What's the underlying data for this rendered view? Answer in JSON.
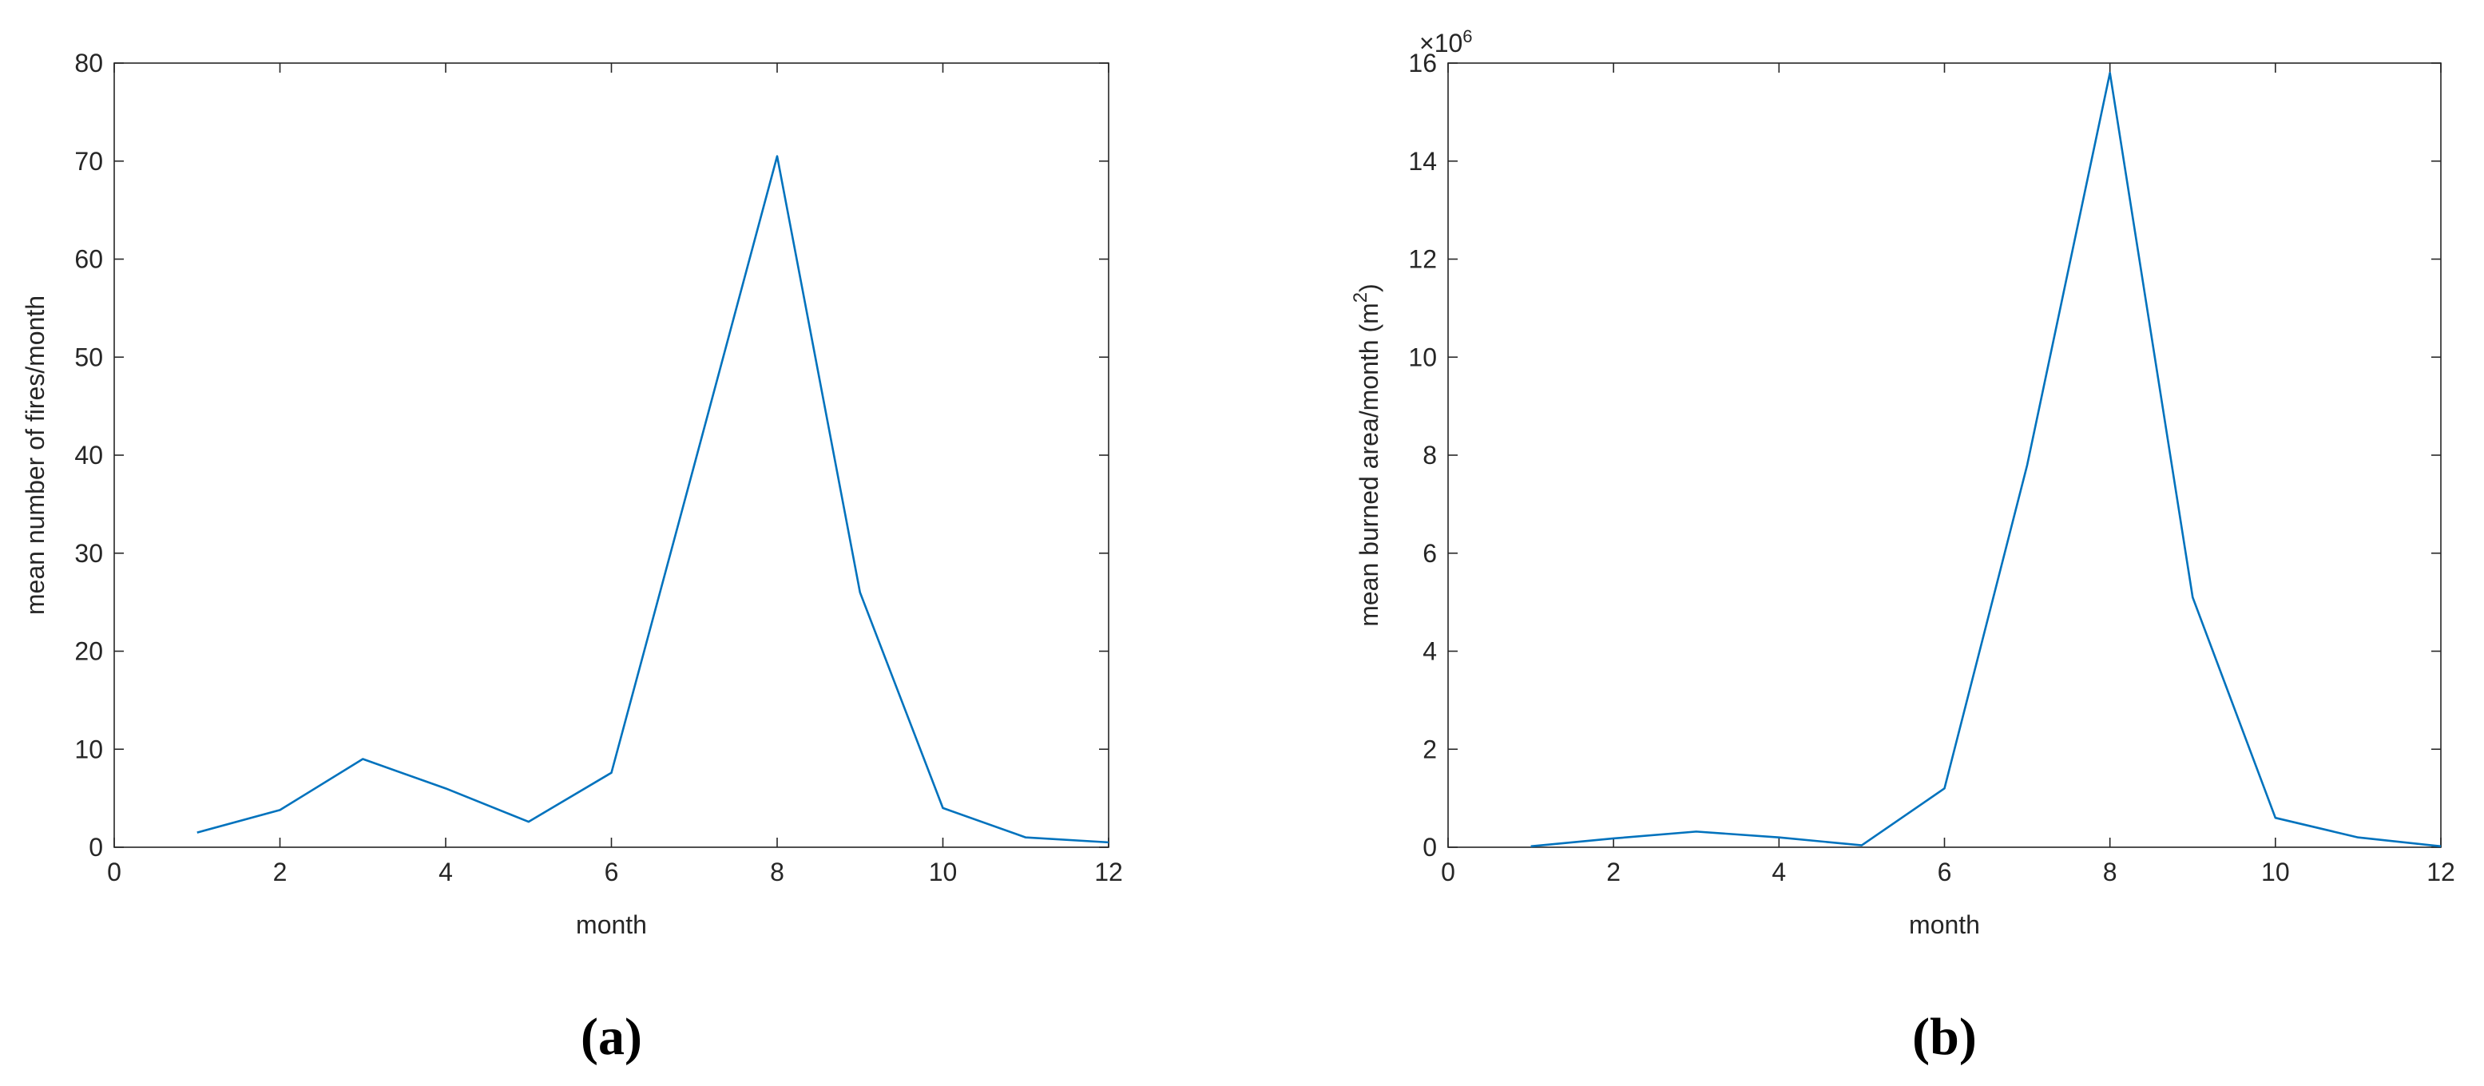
{
  "chart_data": [
    {
      "type": "line",
      "caption": "(a)",
      "xlabel": "month",
      "ylabel": "mean number of fires/month",
      "x": [
        1,
        2,
        3,
        4,
        5,
        6,
        7,
        8,
        9,
        10,
        11,
        12
      ],
      "series": [
        {
          "color": "#0072bd",
          "values": [
            1.5,
            3.8,
            9,
            6,
            2.6,
            7.6,
            39,
            70.5,
            26,
            4,
            1,
            0.5
          ]
        }
      ],
      "xlim": [
        0,
        12
      ],
      "xticks": [
        0,
        2,
        4,
        6,
        8,
        10,
        12
      ],
      "ylim": [
        0,
        80
      ],
      "yticks": [
        0,
        10,
        20,
        30,
        40,
        50,
        60,
        70,
        80
      ]
    },
    {
      "type": "line",
      "caption": "(b)",
      "xlabel": "month",
      "ylabel": {
        "text": "mean burned area/month (m",
        "superscript": "2",
        "suffix": ")"
      },
      "y_multiplier": {
        "base": "×10",
        "exponent": "6"
      },
      "x": [
        1,
        2,
        3,
        4,
        5,
        6,
        7,
        8,
        9,
        10,
        11,
        12
      ],
      "series": [
        {
          "color": "#0072bd",
          "values": [
            0.02,
            0.18,
            0.32,
            0.2,
            0.04,
            1.2,
            7.8,
            15.8,
            5.1,
            0.6,
            0.2,
            0.02
          ]
        }
      ],
      "xlim": [
        0,
        12
      ],
      "xticks": [
        0,
        2,
        4,
        6,
        8,
        10,
        12
      ],
      "ylim": [
        0,
        16
      ],
      "yticks": [
        0,
        2,
        4,
        6,
        8,
        10,
        12,
        14,
        16
      ]
    }
  ]
}
